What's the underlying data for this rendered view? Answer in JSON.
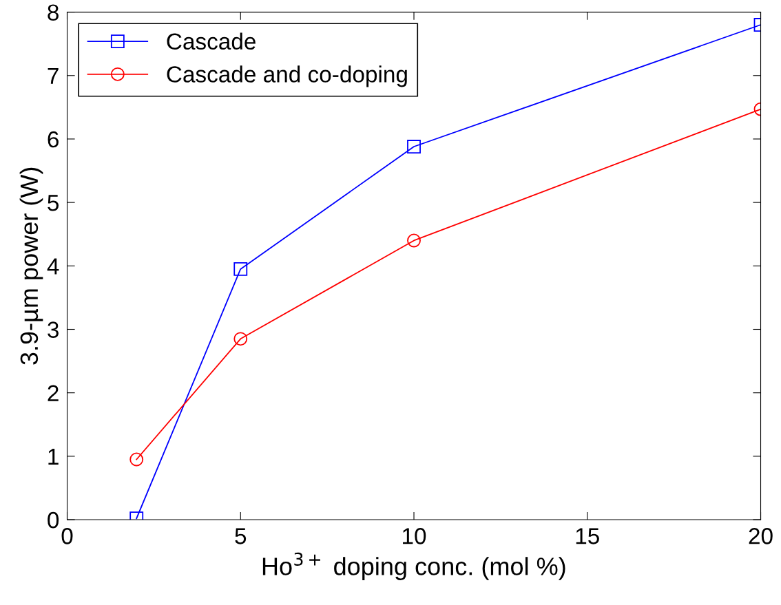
{
  "chart_data": {
    "type": "line",
    "xlabel": "Ho$^{3+}$ doping conc. (mol %)",
    "ylabel": "3.9-µm power (W)",
    "x": [
      2,
      5,
      10,
      20
    ],
    "series": [
      {
        "name": "Cascade",
        "color": "#0000ff",
        "marker": "square",
        "values": [
          0.02,
          3.95,
          5.88,
          7.8
        ]
      },
      {
        "name": "Cascade and co-doping",
        "color": "#ff0000",
        "marker": "circle",
        "values": [
          0.95,
          2.85,
          4.4,
          6.47
        ]
      }
    ],
    "xlim": [
      0,
      20
    ],
    "xticks": [
      0,
      5,
      10,
      15,
      20
    ],
    "ylim": [
      0,
      8
    ],
    "yticks": [
      0,
      1,
      2,
      3,
      4,
      5,
      6,
      7,
      8
    ],
    "grid": false,
    "legend": "top left",
    "line_style": "solid"
  }
}
